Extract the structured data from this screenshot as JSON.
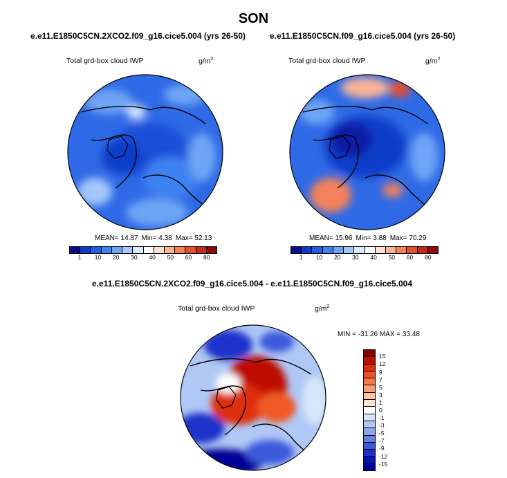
{
  "title": "SON",
  "panel1": {
    "case": "e.e11.E1850C5CN.2XCO2.f09_g16.cice5.004 (yrs 26-50)",
    "variable": "Total grd-box cloud IWP",
    "units_base": "g/m",
    "units_exp": "2",
    "mean_label": "MEAN= 14.87",
    "min_label": "Min=  4.38",
    "max_label": "Max=  52.13"
  },
  "panel2": {
    "case": "e.e11.E1850C5CN.f09_g16.cice5.004 (yrs 26-50)",
    "variable": "Total grd-box cloud IWP",
    "units_base": "g/m",
    "units_exp": "2",
    "mean_label": "MEAN= 15.96",
    "min_label": "Min=  3.88",
    "max_label": "Max=  70.29"
  },
  "panel3": {
    "case": "e.e11.E1850C5CN.2XCO2.f09_g16.cice5.004 - e.e11.E1850C5CN.f09_g16.cice5.004",
    "variable": "Total grd-box cloud IWP",
    "units_base": "g/m",
    "units_exp": "2",
    "minmax_label": "MIN = -31.26  MAX =  33.48"
  },
  "colorbar_abs": {
    "colors": [
      "#0a0a8c",
      "#0f3cc8",
      "#1e5fe6",
      "#3c82f0",
      "#6ea5f5",
      "#a5c8fa",
      "#dceaff",
      "#ffffff",
      "#fde1d2",
      "#fab496",
      "#f5825a",
      "#e6502d",
      "#c8281e",
      "#8c0a0a"
    ],
    "ticks": [
      "1",
      "10",
      "20",
      "30",
      "40",
      "50",
      "60",
      "80"
    ]
  },
  "colorbar_diff": {
    "colors": [
      "#8c0000",
      "#be0f00",
      "#de2d0f",
      "#f0501e",
      "#f57a4b",
      "#fa9e78",
      "#fcc3a5",
      "#fde6d7",
      "#ffffff",
      "#d7e6fa",
      "#afc8f5",
      "#8ca5f0",
      "#6482e6",
      "#3c5adc",
      "#1e32c8",
      "#0a14b4",
      "#000096"
    ],
    "ticks": [
      "15",
      "12",
      "9",
      "7",
      "5",
      "3",
      "1",
      "0",
      "-1",
      "-3",
      "-5",
      "-7",
      "-9",
      "-12",
      "-15"
    ]
  }
}
